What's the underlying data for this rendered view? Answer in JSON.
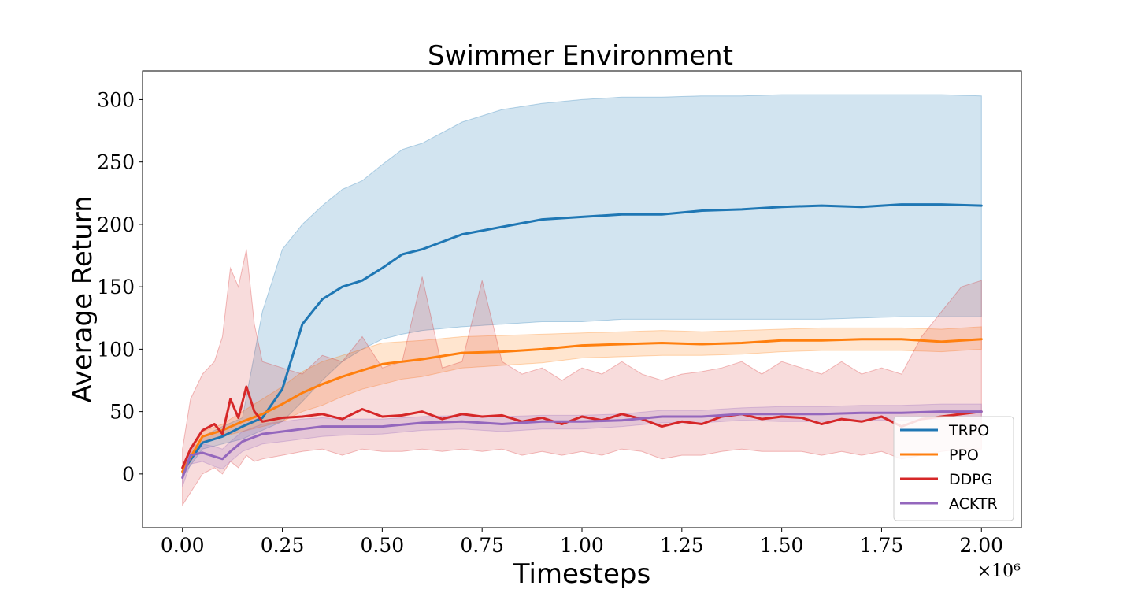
{
  "chart_data": {
    "type": "line",
    "title": "Swimmer Environment",
    "xlabel": "Timesteps",
    "ylabel": "Average Return",
    "x_multiplier_label": "×10⁶",
    "xlim": [
      -0.1,
      2.1
    ],
    "ylim": [
      -43,
      323
    ],
    "x_ticks": [
      0.0,
      0.25,
      0.5,
      0.75,
      1.0,
      1.25,
      1.5,
      1.75,
      2.0
    ],
    "x_tick_labels": [
      "0.00",
      "0.25",
      "0.50",
      "0.75",
      "1.00",
      "1.25",
      "1.50",
      "1.75",
      "2.00"
    ],
    "y_ticks": [
      0,
      50,
      100,
      150,
      200,
      250,
      300
    ],
    "y_tick_labels": [
      "0",
      "50",
      "100",
      "150",
      "200",
      "250",
      "300"
    ],
    "grid": false,
    "legend_position": "bottom-right",
    "series": [
      {
        "name": "TRPO",
        "color": "#1f77b4",
        "x": [
          0.0,
          0.05,
          0.1,
          0.15,
          0.2,
          0.25,
          0.3,
          0.35,
          0.4,
          0.45,
          0.5,
          0.55,
          0.6,
          0.7,
          0.8,
          0.9,
          1.0,
          1.1,
          1.2,
          1.3,
          1.4,
          1.5,
          1.6,
          1.7,
          1.8,
          1.9,
          2.0
        ],
        "y": [
          2,
          25,
          30,
          38,
          45,
          68,
          120,
          140,
          150,
          155,
          165,
          176,
          180,
          192,
          198,
          204,
          206,
          208,
          208,
          211,
          212,
          214,
          215,
          214,
          216,
          216,
          215
        ],
        "upper": [
          5,
          30,
          38,
          45,
          130,
          180,
          200,
          215,
          228,
          235,
          248,
          260,
          265,
          282,
          292,
          297,
          300,
          302,
          302,
          303,
          303,
          304,
          304,
          304,
          304,
          304,
          303
        ],
        "lower": [
          -2,
          20,
          24,
          28,
          35,
          42,
          58,
          75,
          90,
          100,
          108,
          112,
          115,
          118,
          120,
          122,
          122,
          124,
          124,
          124,
          124,
          124,
          124,
          125,
          126,
          126,
          126
        ]
      },
      {
        "name": "PPO",
        "color": "#ff7f0e",
        "x": [
          0.0,
          0.05,
          0.1,
          0.15,
          0.2,
          0.25,
          0.3,
          0.35,
          0.4,
          0.45,
          0.5,
          0.55,
          0.6,
          0.7,
          0.8,
          0.9,
          1.0,
          1.1,
          1.2,
          1.3,
          1.4,
          1.5,
          1.6,
          1.7,
          1.8,
          1.9,
          2.0
        ],
        "y": [
          2,
          30,
          35,
          42,
          48,
          56,
          65,
          72,
          78,
          83,
          88,
          90,
          92,
          97,
          98,
          100,
          103,
          104,
          105,
          104,
          105,
          107,
          107,
          108,
          108,
          106,
          108
        ],
        "upper": [
          5,
          34,
          40,
          50,
          60,
          70,
          82,
          90,
          95,
          100,
          105,
          106,
          107,
          110,
          111,
          112,
          113,
          114,
          115,
          114,
          115,
          116,
          117,
          117,
          117,
          116,
          118
        ],
        "lower": [
          -1,
          26,
          30,
          34,
          38,
          42,
          50,
          55,
          62,
          68,
          72,
          76,
          78,
          85,
          87,
          89,
          93,
          94,
          95,
          95,
          96,
          98,
          99,
          99,
          99,
          98,
          100
        ]
      },
      {
        "name": "DDPG",
        "color": "#d62728",
        "x": [
          0.0,
          0.02,
          0.05,
          0.08,
          0.1,
          0.12,
          0.14,
          0.16,
          0.18,
          0.2,
          0.25,
          0.3,
          0.35,
          0.4,
          0.45,
          0.5,
          0.55,
          0.6,
          0.65,
          0.7,
          0.75,
          0.8,
          0.85,
          0.9,
          0.95,
          1.0,
          1.05,
          1.1,
          1.15,
          1.2,
          1.25,
          1.3,
          1.35,
          1.4,
          1.45,
          1.5,
          1.55,
          1.6,
          1.65,
          1.7,
          1.75,
          1.8,
          1.85,
          1.9,
          1.95,
          2.0
        ],
        "y": [
          5,
          20,
          35,
          40,
          32,
          60,
          45,
          70,
          50,
          42,
          45,
          46,
          48,
          44,
          52,
          46,
          47,
          50,
          44,
          48,
          46,
          47,
          42,
          45,
          40,
          46,
          43,
          48,
          44,
          38,
          42,
          40,
          46,
          48,
          44,
          46,
          45,
          40,
          44,
          42,
          46,
          38,
          44,
          46,
          48,
          50
        ],
        "upper": [
          20,
          60,
          80,
          90,
          110,
          165,
          150,
          180,
          120,
          90,
          85,
          80,
          95,
          90,
          110,
          85,
          90,
          158,
          85,
          90,
          155,
          90,
          80,
          85,
          75,
          85,
          80,
          90,
          80,
          75,
          80,
          82,
          85,
          90,
          80,
          90,
          85,
          80,
          90,
          80,
          85,
          80,
          110,
          130,
          150,
          155
        ],
        "lower": [
          -25,
          -15,
          0,
          5,
          0,
          10,
          5,
          15,
          10,
          12,
          15,
          18,
          20,
          15,
          20,
          18,
          18,
          20,
          18,
          20,
          18,
          20,
          15,
          18,
          15,
          18,
          15,
          20,
          18,
          12,
          15,
          15,
          18,
          20,
          18,
          18,
          18,
          15,
          18,
          15,
          18,
          12,
          15,
          18,
          20,
          20
        ]
      },
      {
        "name": "ACKTR",
        "color": "#9467bd",
        "x": [
          0.0,
          0.02,
          0.05,
          0.08,
          0.1,
          0.12,
          0.15,
          0.2,
          0.25,
          0.3,
          0.35,
          0.4,
          0.5,
          0.6,
          0.7,
          0.8,
          0.9,
          1.0,
          1.1,
          1.2,
          1.3,
          1.4,
          1.5,
          1.6,
          1.7,
          1.8,
          1.9,
          2.0
        ],
        "y": [
          -3,
          15,
          17,
          14,
          12,
          18,
          26,
          32,
          34,
          36,
          38,
          38,
          38,
          41,
          42,
          40,
          42,
          42,
          43,
          46,
          46,
          48,
          48,
          48,
          49,
          49,
          50,
          50
        ],
        "upper": [
          2,
          22,
          24,
          22,
          20,
          26,
          34,
          40,
          42,
          44,
          45,
          44,
          44,
          46,
          47,
          46,
          47,
          47,
          48,
          51,
          51,
          53,
          54,
          54,
          55,
          55,
          56,
          56
        ],
        "lower": [
          -10,
          8,
          10,
          6,
          4,
          10,
          18,
          24,
          26,
          28,
          30,
          31,
          32,
          35,
          36,
          34,
          36,
          36,
          38,
          41,
          41,
          43,
          42,
          42,
          43,
          43,
          44,
          44
        ]
      }
    ]
  }
}
